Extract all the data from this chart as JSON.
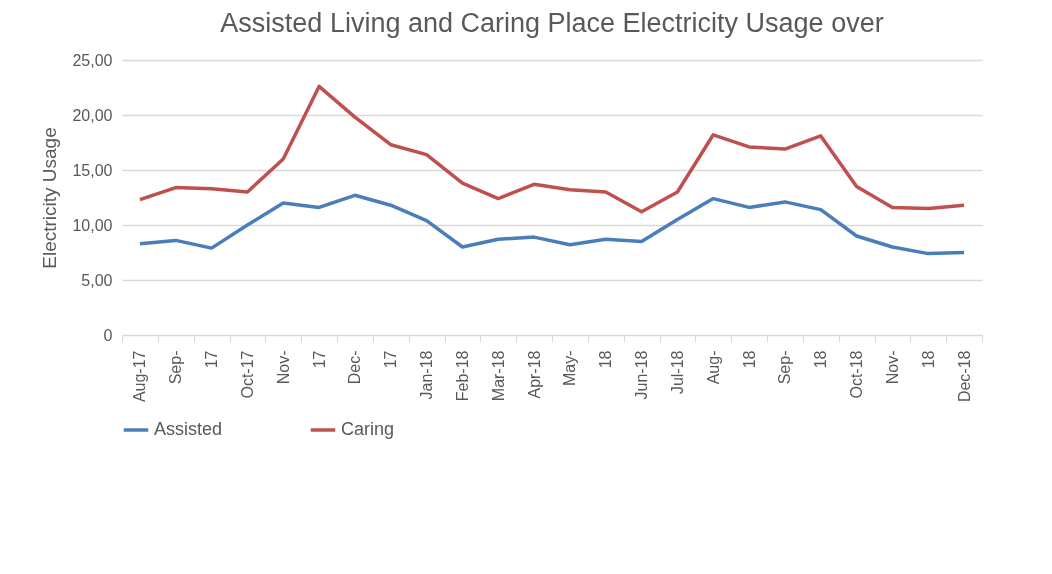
{
  "chart_data": {
    "type": "line",
    "title": "Assisted Living and Caring Place Electricity Usage over",
    "ylabel": "Electricity Usage",
    "categories": [
      "Aug-17",
      "Sep-",
      "17",
      "Oct-17",
      "Nov-",
      "17",
      "Dec-",
      "17",
      "Jan-18",
      "Feb-18",
      "Mar-18",
      "Apr-18",
      "May-",
      "18",
      "Jun-18",
      "Jul-18",
      "Aug-",
      "18",
      "Sep-",
      "18",
      "Oct-18",
      "Nov-",
      "18",
      "Dec-18"
    ],
    "series": [
      {
        "name": "Assisted",
        "color": "#4a7ebb",
        "values": [
          8.3,
          8.6,
          7.9,
          10.0,
          12.0,
          11.6,
          12.7,
          11.8,
          10.4,
          8.0,
          8.7,
          8.9,
          8.2,
          8.7,
          8.5,
          10.5,
          12.4,
          11.6,
          12.1,
          11.4,
          9.0,
          8.0,
          7.4,
          7.5
        ]
      },
      {
        "name": "Caring",
        "color": "#c0504d",
        "values": [
          12.3,
          13.4,
          13.3,
          13.0,
          16.0,
          22.6,
          19.8,
          17.3,
          16.4,
          13.8,
          12.4,
          13.7,
          13.2,
          13.0,
          11.2,
          13.0,
          18.2,
          17.1,
          16.9,
          18.1,
          13.5,
          11.6,
          11.5,
          11.8
        ]
      }
    ],
    "ylim": [
      0,
      25
    ],
    "yticks": [
      {
        "value": 0,
        "label": "0"
      },
      {
        "value": 5,
        "label": "5,00"
      },
      {
        "value": 10,
        "label": "10,00"
      },
      {
        "value": 15,
        "label": "15,00"
      },
      {
        "value": 20,
        "label": "20,00"
      },
      {
        "value": 25,
        "label": "25,00"
      }
    ],
    "grid": "y",
    "legend": "bottom",
    "line_style": "solid",
    "marker": "none"
  }
}
